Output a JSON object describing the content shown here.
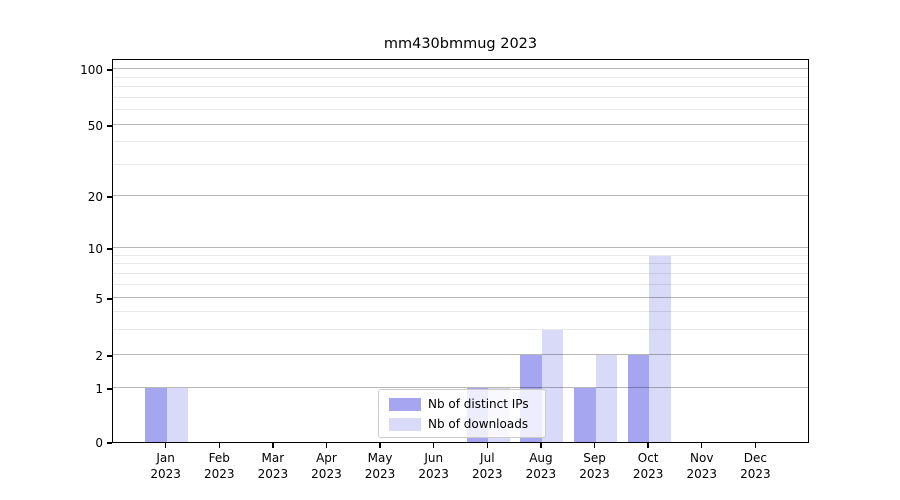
{
  "chart_data": {
    "type": "bar",
    "title": "mm430bmmug 2023",
    "categories": [
      {
        "month": "Jan",
        "year": "2023"
      },
      {
        "month": "Feb",
        "year": "2023"
      },
      {
        "month": "Mar",
        "year": "2023"
      },
      {
        "month": "Apr",
        "year": "2023"
      },
      {
        "month": "May",
        "year": "2023"
      },
      {
        "month": "Jun",
        "year": "2023"
      },
      {
        "month": "Jul",
        "year": "2023"
      },
      {
        "month": "Aug",
        "year": "2023"
      },
      {
        "month": "Sep",
        "year": "2023"
      },
      {
        "month": "Oct",
        "year": "2023"
      },
      {
        "month": "Nov",
        "year": "2023"
      },
      {
        "month": "Dec",
        "year": "2023"
      }
    ],
    "series": [
      {
        "name": "Nb of distinct IPs",
        "color": "#a6a6f0",
        "values": [
          1,
          0,
          0,
          0,
          0,
          0,
          1,
          2,
          1,
          2,
          0,
          0
        ]
      },
      {
        "name": "Nb of downloads",
        "color": "#d9d9f8",
        "values": [
          1,
          0,
          0,
          0,
          0,
          0,
          1,
          3,
          2,
          9,
          0,
          0
        ]
      }
    ],
    "yticks": [
      0,
      1,
      2,
      5,
      10,
      20,
      50,
      100
    ],
    "yticks_minor": [
      3,
      4,
      6,
      7,
      8,
      9,
      30,
      40,
      60,
      70,
      80,
      90
    ],
    "ylim": [
      0,
      115
    ],
    "scale": "log-like",
    "grid": "on",
    "legend_position": "lower center"
  }
}
